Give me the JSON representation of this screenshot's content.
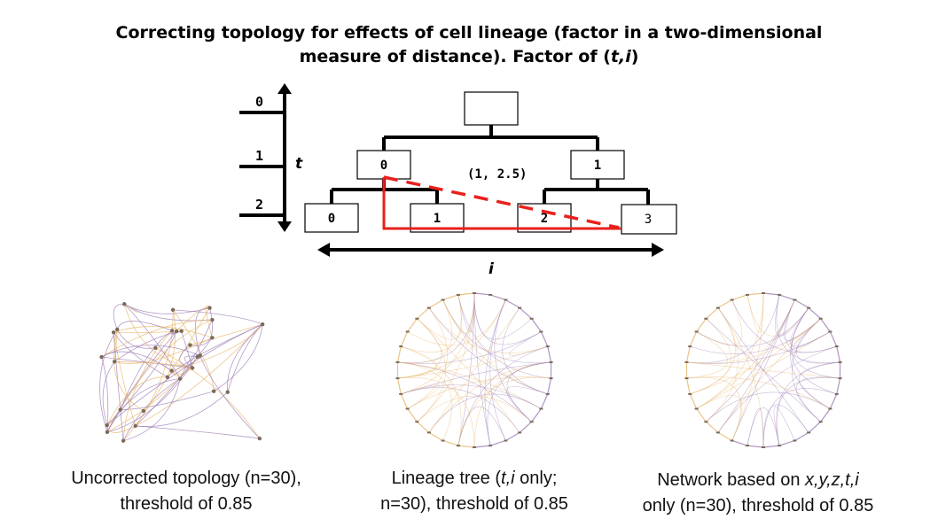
{
  "title": {
    "line1": "Correcting topology for effects of cell lineage (factor in a two-dimensional",
    "line2_prefix": "measure of distance). Factor of (",
    "line2_var": "t,i",
    "line2_suffix": ")"
  },
  "tree": {
    "t_axis_ticks": [
      "0",
      "1",
      "2"
    ],
    "t_axis_label": "t",
    "i_axis_label": "i",
    "root_label": "",
    "level1_labels": [
      "0",
      "1"
    ],
    "level2_labels": [
      "0",
      "1",
      "2",
      "3"
    ],
    "coordinate_annotation": "(1, 2.5)"
  },
  "colors": {
    "tree_lines": "#000000",
    "distance_path": "#e8201c",
    "net_purple": "#9b7bb5",
    "net_orange": "#e7b66a",
    "node_fill": "#7a6a58"
  },
  "captions": {
    "left_line1": "Uncorrected topology (n=30),",
    "left_line2": "threshold of 0.85",
    "middle_line1_prefix": "Lineage tree (",
    "middle_line1_var": "t,i",
    "middle_line1_suffix": " only;",
    "middle_line2": "n=30), threshold of 0.85",
    "right_line1_prefix": "Network based on ",
    "right_line1_var": "x,y,z,t,i",
    "right_line2": "only (n=30), threshold of 0.85"
  }
}
